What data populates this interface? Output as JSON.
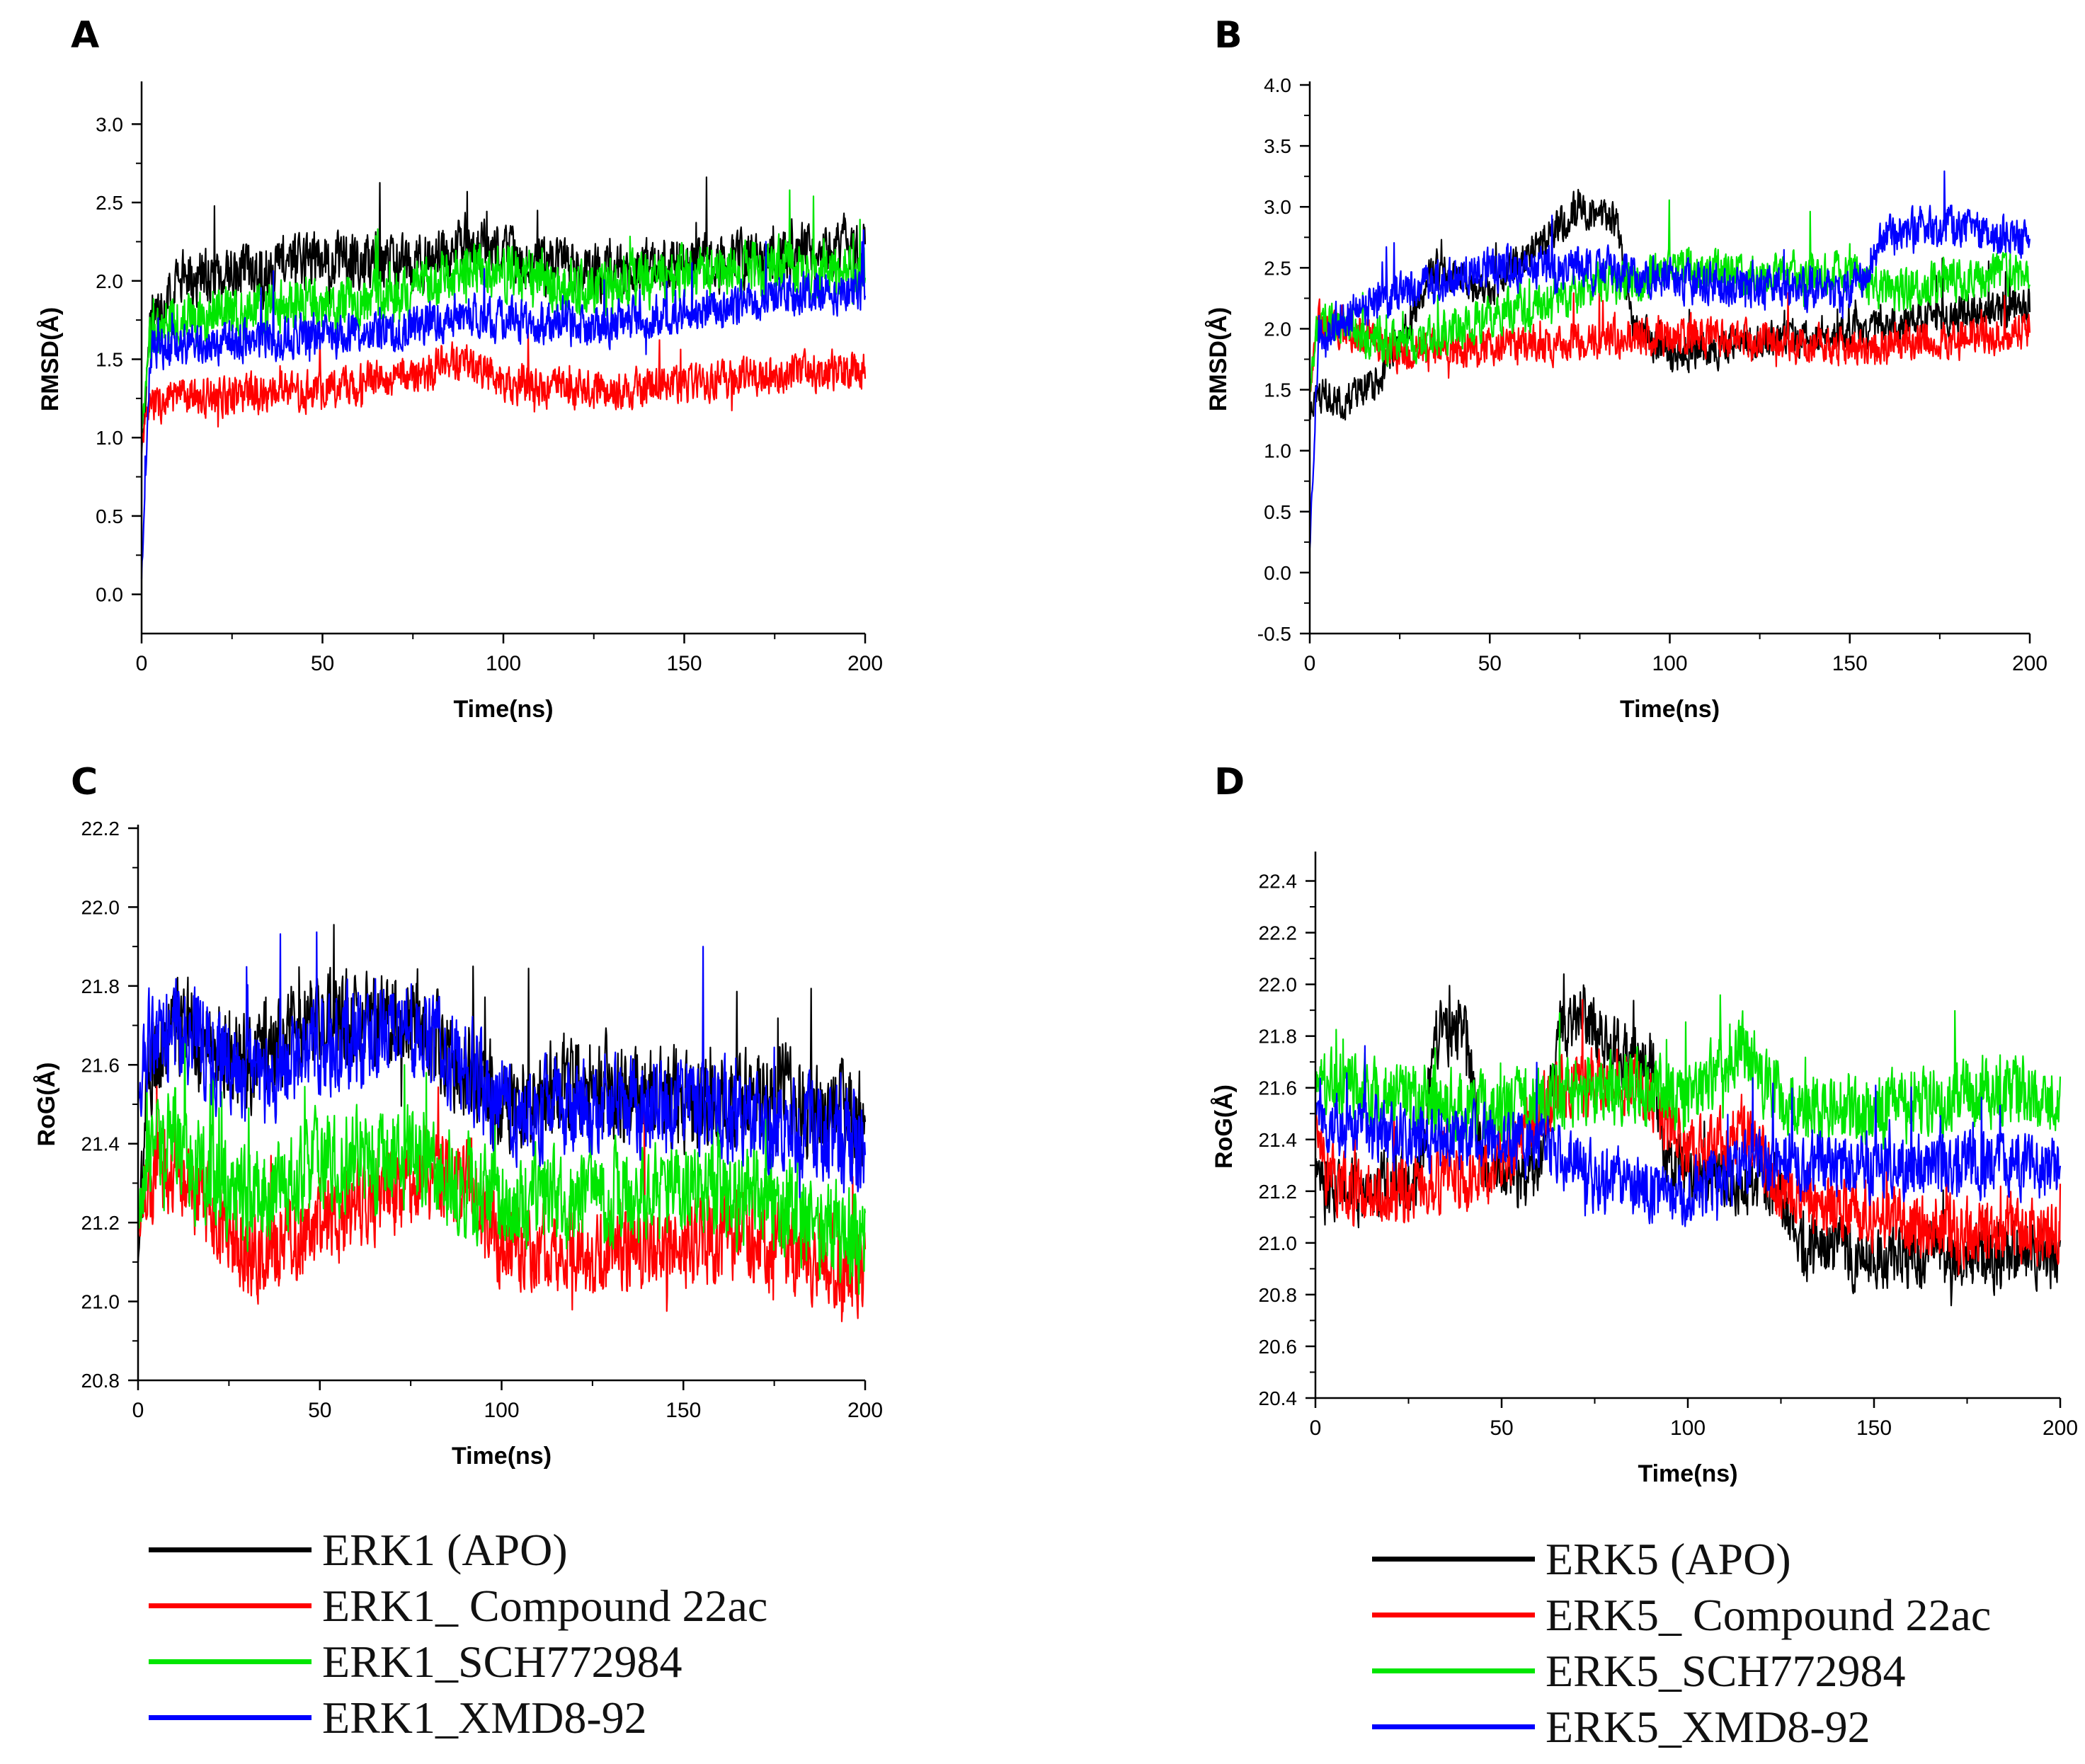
{
  "chart_data": [
    {
      "type": "line",
      "panel_label": "A",
      "xlabel": "Time(ns)",
      "ylabel": "RMSD(Å)",
      "xlim": [
        0,
        200
      ],
      "ylim": [
        -0.25,
        3.25
      ],
      "xticks": [
        0,
        50,
        100,
        150,
        200
      ],
      "yticks": [
        0.0,
        0.5,
        1.0,
        1.5,
        2.0,
        2.5,
        3.0
      ],
      "tick_labels_x": [
        "0",
        "50",
        "100",
        "150",
        "200"
      ],
      "tick_labels_y": [
        "0.0",
        "0.5",
        "1.0",
        "1.5",
        "2.0",
        "2.5",
        "3.0"
      ],
      "series": [
        {
          "name": "ERK1 (APO)",
          "color": "#000000",
          "start": 0.9,
          "noise": 0.28,
          "x": [
            0,
            10,
            25,
            50,
            75,
            90,
            100,
            125,
            150,
            175,
            200
          ],
          "y": [
            1.6,
            2.0,
            2.05,
            2.15,
            2.1,
            2.25,
            2.15,
            2.05,
            2.1,
            2.15,
            2.25
          ]
        },
        {
          "name": "ERK1_ Compound 22ac",
          "color": "#ff0000",
          "start": 1.0,
          "noise": 0.2,
          "x": [
            0,
            10,
            25,
            50,
            75,
            90,
            100,
            125,
            150,
            175,
            200
          ],
          "y": [
            1.2,
            1.25,
            1.28,
            1.3,
            1.4,
            1.5,
            1.35,
            1.3,
            1.35,
            1.4,
            1.45
          ]
        },
        {
          "name": "ERK1_SCH772984",
          "color": "#00e600",
          "start": 1.0,
          "noise": 0.28,
          "x": [
            0,
            10,
            25,
            50,
            75,
            90,
            100,
            125,
            150,
            175,
            200
          ],
          "y": [
            1.6,
            1.75,
            1.8,
            1.85,
            1.9,
            2.1,
            2.05,
            1.95,
            2.05,
            2.1,
            2.05
          ]
        },
        {
          "name": "ERK1_XMD8-92",
          "color": "#0000ff",
          "start": 0.1,
          "noise": 0.22,
          "x": [
            0,
            10,
            25,
            50,
            75,
            90,
            100,
            125,
            150,
            175,
            200
          ],
          "y": [
            1.55,
            1.6,
            1.62,
            1.65,
            1.7,
            1.8,
            1.75,
            1.72,
            1.8,
            1.9,
            1.95
          ]
        }
      ]
    },
    {
      "type": "line",
      "panel_label": "B",
      "xlabel": "Time(ns)",
      "ylabel": "RMSD(Å)",
      "xlim": [
        0,
        200
      ],
      "ylim": [
        -0.5,
        4.0
      ],
      "xticks": [
        0,
        50,
        100,
        150,
        200
      ],
      "yticks": [
        -0.5,
        0.0,
        0.5,
        1.0,
        1.5,
        2.0,
        2.5,
        3.0,
        3.5,
        4.0
      ],
      "tick_labels_x": [
        "0",
        "50",
        "100",
        "150",
        "200"
      ],
      "tick_labels_y": [
        "-0.5",
        "0.0",
        "0.5",
        "1.0",
        "1.5",
        "2.0",
        "2.5",
        "3.0",
        "3.5",
        "4.0"
      ],
      "series": [
        {
          "name": "ERK5 (APO)",
          "color": "#000000",
          "start": 1.3,
          "noise": 0.25,
          "x": [
            0,
            10,
            20,
            35,
            50,
            60,
            75,
            85,
            90,
            100,
            125,
            150,
            175,
            200
          ],
          "y": [
            1.5,
            1.4,
            1.6,
            2.5,
            2.3,
            2.6,
            3.0,
            2.9,
            2.0,
            1.8,
            1.9,
            2.0,
            2.1,
            2.2
          ]
        },
        {
          "name": "ERK5_ Compound 22ac",
          "color": "#ff0000",
          "start": 1.5,
          "noise": 0.26,
          "x": [
            0,
            10,
            25,
            50,
            75,
            100,
            125,
            150,
            175,
            200
          ],
          "y": [
            2.1,
            2.0,
            1.8,
            1.85,
            1.9,
            1.95,
            1.9,
            1.85,
            1.9,
            2.0
          ]
        },
        {
          "name": "ERK5_SCH772984",
          "color": "#00e600",
          "start": 1.5,
          "noise": 0.28,
          "x": [
            0,
            10,
            25,
            50,
            75,
            100,
            125,
            150,
            160,
            175,
            200
          ],
          "y": [
            2.1,
            2.0,
            1.85,
            2.1,
            2.3,
            2.5,
            2.45,
            2.45,
            2.3,
            2.4,
            2.45
          ]
        },
        {
          "name": "ERK5_XMD8-92",
          "color": "#0000ff",
          "start": 0.2,
          "noise": 0.28,
          "x": [
            0,
            10,
            25,
            50,
            75,
            100,
            125,
            150,
            160,
            175,
            200
          ],
          "y": [
            1.9,
            2.1,
            2.3,
            2.5,
            2.5,
            2.4,
            2.35,
            2.3,
            2.75,
            2.85,
            2.7
          ]
        }
      ]
    },
    {
      "type": "line",
      "panel_label": "C",
      "xlabel": "Time(ns)",
      "ylabel": "RoG(Å)",
      "xlim": [
        0,
        200
      ],
      "ylim": [
        20.8,
        22.2
      ],
      "xticks": [
        0,
        50,
        100,
        150,
        200
      ],
      "yticks": [
        20.8,
        21.0,
        21.2,
        21.4,
        21.6,
        21.8,
        22.0,
        22.2
      ],
      "tick_labels_x": [
        "0",
        "50",
        "100",
        "150",
        "200"
      ],
      "tick_labels_y": [
        "20.8",
        "21.0",
        "21.2",
        "21.4",
        "21.6",
        "21.8",
        "22.0",
        "22.2"
      ],
      "series": [
        {
          "name": "ERK1 (APO)",
          "color": "#000000",
          "start": 21.1,
          "noise": 0.2,
          "x": [
            0,
            10,
            30,
            50,
            75,
            90,
            100,
            125,
            150,
            175,
            200
          ],
          "y": [
            21.55,
            21.7,
            21.6,
            21.72,
            21.7,
            21.6,
            21.5,
            21.55,
            21.5,
            21.52,
            21.45
          ]
        },
        {
          "name": "ERK1_ Compound 22ac",
          "color": "#ff0000",
          "start": 21.2,
          "noise": 0.18,
          "x": [
            0,
            10,
            30,
            50,
            75,
            90,
            100,
            125,
            150,
            175,
            200
          ],
          "y": [
            21.3,
            21.35,
            21.12,
            21.2,
            21.3,
            21.3,
            21.15,
            21.12,
            21.15,
            21.15,
            21.08
          ]
        },
        {
          "name": "ERK1_SCH772984",
          "color": "#00e600",
          "start": 21.2,
          "noise": 0.2,
          "x": [
            0,
            10,
            30,
            50,
            75,
            90,
            100,
            125,
            150,
            175,
            200
          ],
          "y": [
            21.35,
            21.4,
            21.25,
            21.35,
            21.38,
            21.3,
            21.25,
            21.25,
            21.3,
            21.25,
            21.15
          ]
        },
        {
          "name": "ERK1_XMD8-92",
          "color": "#0000ff",
          "start": 21.5,
          "noise": 0.2,
          "x": [
            0,
            10,
            30,
            50,
            75,
            90,
            100,
            125,
            150,
            175,
            200
          ],
          "y": [
            21.65,
            21.7,
            21.55,
            21.65,
            21.7,
            21.6,
            21.48,
            21.5,
            21.5,
            21.45,
            21.4
          ]
        }
      ]
    },
    {
      "type": "line",
      "panel_label": "D",
      "xlabel": "Time(ns)",
      "ylabel": "RoG(Å)",
      "xlim": [
        0,
        200
      ],
      "ylim": [
        20.4,
        22.5
      ],
      "xticks": [
        0,
        50,
        100,
        150,
        200
      ],
      "yticks": [
        20.4,
        20.6,
        20.8,
        21.0,
        21.2,
        21.4,
        21.6,
        21.8,
        22.0,
        22.2,
        22.4
      ],
      "tick_labels_x": [
        "0",
        "50",
        "100",
        "150",
        "200"
      ],
      "tick_labels_y": [
        "20.4",
        "20.6",
        "20.8",
        "21.0",
        "21.2",
        "21.4",
        "21.6",
        "21.8",
        "22.0",
        "22.2",
        "22.4"
      ],
      "series": [
        {
          "name": "ERK5 (APO)",
          "color": "#000000",
          "start": 21.3,
          "noise": 0.2,
          "x": [
            0,
            10,
            28,
            32,
            40,
            45,
            60,
            65,
            70,
            80,
            90,
            95,
            125,
            130,
            150,
            175,
            200
          ],
          "y": [
            21.2,
            21.2,
            21.25,
            21.8,
            21.85,
            21.3,
            21.25,
            21.8,
            21.9,
            21.75,
            21.7,
            21.3,
            21.2,
            21.0,
            20.95,
            20.95,
            20.95
          ]
        },
        {
          "name": "ERK5_ Compound 22ac",
          "color": "#ff0000",
          "start": 21.5,
          "noise": 0.2,
          "x": [
            0,
            10,
            30,
            50,
            65,
            80,
            90,
            100,
            115,
            125,
            150,
            175,
            200
          ],
          "y": [
            21.3,
            21.2,
            21.2,
            21.3,
            21.6,
            21.65,
            21.55,
            21.35,
            21.45,
            21.2,
            21.1,
            21.05,
            21.05
          ]
        },
        {
          "name": "ERK5_SCH772984",
          "color": "#00e600",
          "start": 21.6,
          "noise": 0.22,
          "x": [
            0,
            10,
            30,
            50,
            70,
            90,
            100,
            115,
            125,
            150,
            175,
            200
          ],
          "y": [
            21.6,
            21.6,
            21.55,
            21.5,
            21.6,
            21.6,
            21.55,
            21.75,
            21.55,
            21.5,
            21.6,
            21.55
          ]
        },
        {
          "name": "ERK5_XMD8-92",
          "color": "#0000ff",
          "start": 21.5,
          "noise": 0.2,
          "x": [
            0,
            10,
            30,
            50,
            65,
            75,
            90,
            100,
            115,
            125,
            150,
            175,
            200
          ],
          "y": [
            21.5,
            21.45,
            21.4,
            21.4,
            21.35,
            21.25,
            21.2,
            21.2,
            21.3,
            21.3,
            21.3,
            21.3,
            21.3
          ]
        }
      ]
    }
  ],
  "legends": {
    "left": [
      {
        "label": "ERK1 (APO)",
        "color": "#000000"
      },
      {
        "label": "ERK1_ Compound 22ac",
        "color": "#ff0000"
      },
      {
        "label": "ERK1_SCH772984",
        "color": "#00e600"
      },
      {
        "label": "ERK1_XMD8-92",
        "color": "#0000ff"
      }
    ],
    "right": [
      {
        "label": "ERK5 (APO)",
        "color": "#000000"
      },
      {
        "label": "ERK5_ Compound 22ac",
        "color": "#ff0000"
      },
      {
        "label": "ERK5_SCH772984",
        "color": "#00e600"
      },
      {
        "label": "ERK5_XMD8-92",
        "color": "#0000ff"
      }
    ]
  }
}
